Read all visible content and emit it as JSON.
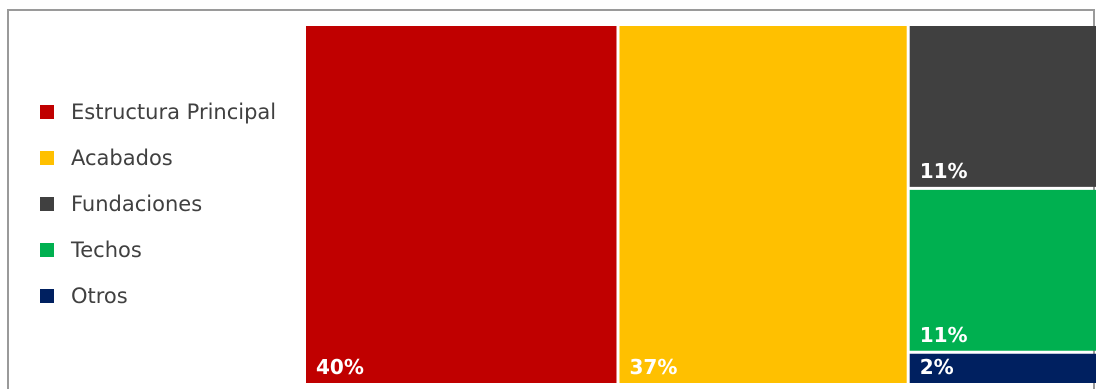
{
  "chart_data": {
    "type": "treemap",
    "title": "",
    "legend_position": "left",
    "series": [
      {
        "name": "Estructura Principal",
        "value": 40,
        "label": "40%",
        "color": "#c00000"
      },
      {
        "name": "Acabados",
        "value": 37,
        "label": "37%",
        "color": "#ffc000"
      },
      {
        "name": "Fundaciones",
        "value": 11,
        "label": "11%",
        "color": "#404040"
      },
      {
        "name": "Techos",
        "value": 11,
        "label": "11%",
        "color": "#00b050"
      },
      {
        "name": "Otros",
        "value": 2,
        "label": "2%",
        "color": "#002060"
      }
    ]
  }
}
